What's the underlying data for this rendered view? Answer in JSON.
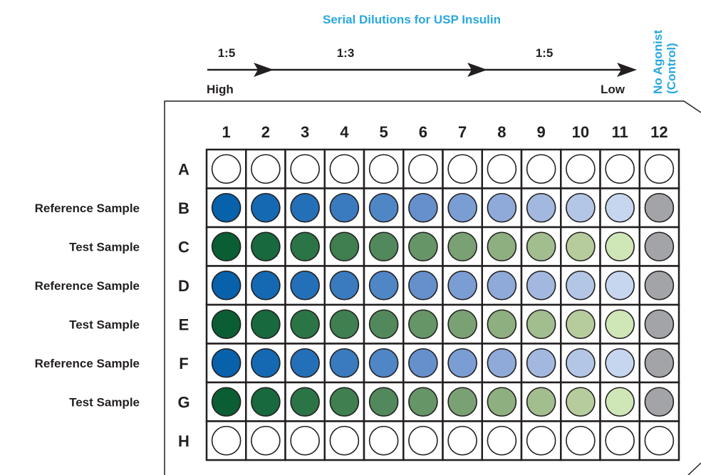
{
  "header": {
    "title": "Serial Dilutions for USP Insulin",
    "control_label_line1": "No Agonist",
    "control_label_line2": "(Control)"
  },
  "dilution_axis": {
    "ratios": [
      "1:5",
      "1:3",
      "1:5"
    ],
    "high_label": "High",
    "low_label": "Low"
  },
  "plate": {
    "columns": [
      "1",
      "2",
      "3",
      "4",
      "5",
      "6",
      "7",
      "8",
      "9",
      "10",
      "11",
      "12"
    ],
    "rows": [
      {
        "letter": "A",
        "sample": "",
        "type": "empty"
      },
      {
        "letter": "B",
        "sample": "Reference Sample",
        "type": "reference"
      },
      {
        "letter": "C",
        "sample": "Test Sample",
        "type": "test"
      },
      {
        "letter": "D",
        "sample": "Reference Sample",
        "type": "reference"
      },
      {
        "letter": "E",
        "sample": "Test Sample",
        "type": "test"
      },
      {
        "letter": "F",
        "sample": "Reference Sample",
        "type": "reference"
      },
      {
        "letter": "G",
        "sample": "Test Sample",
        "type": "test"
      },
      {
        "letter": "H",
        "sample": "",
        "type": "empty"
      }
    ]
  },
  "colors": {
    "title_blue": "#29a8e0",
    "text": "#231f20",
    "empty_well": "#ffffff",
    "control_well": "#a2a4a7",
    "reference_gradient": [
      "#0761ab",
      "#1469b2",
      "#2470b8",
      "#3a7bbf",
      "#4f86c6",
      "#6590cc",
      "#7a9dd3",
      "#8faad9",
      "#a2b8df",
      "#b4c6e6",
      "#c7d6ef"
    ],
    "test_gradient": [
      "#0b5e33",
      "#18693d",
      "#2b7446",
      "#3f7f50",
      "#52895c",
      "#669568",
      "#7aa174",
      "#8eaf80",
      "#a2bd8e",
      "#b6cc9d",
      "#cfe6b6"
    ]
  }
}
